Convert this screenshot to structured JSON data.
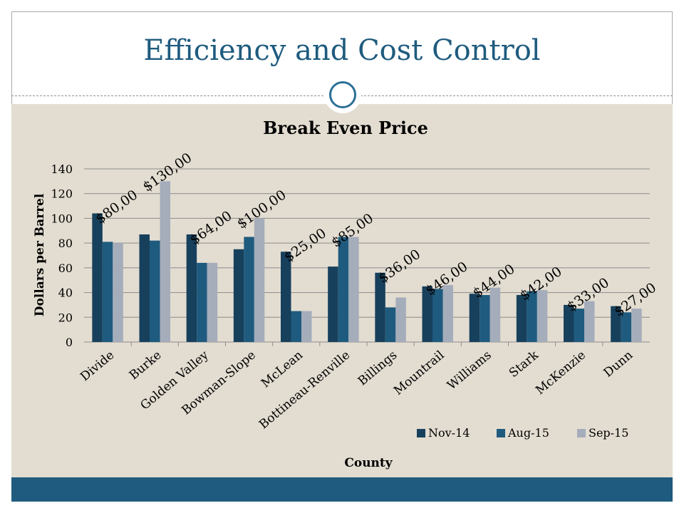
{
  "slide": {
    "title": "Efficiency and Cost Control"
  },
  "colors": {
    "title": "#1f5b7e",
    "panel": "#e3ddd1",
    "footer": "#1f5b7e",
    "grid": "#8c8c8c"
  },
  "chart_data": {
    "type": "bar",
    "title": "Break Even Price",
    "xlabel": "County",
    "ylabel": "Dollars per Barrel",
    "ylim": [
      0,
      140
    ],
    "yticks": [
      0,
      20,
      40,
      60,
      80,
      100,
      120,
      140
    ],
    "grid": true,
    "legend_position": "bottom-right",
    "categories": [
      "Divide",
      "Burke",
      "Golden Valley",
      "Bowman-Slope",
      "McLean",
      "Bottineau-Renville",
      "Billings",
      "Mountrail",
      "Williams",
      "Stark",
      "McKenzie",
      "Dunn"
    ],
    "series": [
      {
        "name": "Nov-14",
        "color": "#17405c",
        "values": [
          104,
          87,
          87,
          75,
          73,
          61,
          56,
          45,
          39,
          38,
          30,
          29
        ]
      },
      {
        "name": "Aug-15",
        "color": "#1f5b7e",
        "values": [
          81,
          82,
          64,
          85,
          25,
          85,
          28,
          43,
          38,
          41,
          27,
          24
        ]
      },
      {
        "name": "Sep-15",
        "color": "#a5adbb",
        "values": [
          80,
          130,
          64,
          100,
          25,
          85,
          36,
          46,
          44,
          42,
          33,
          27
        ]
      }
    ],
    "data_labels": [
      "$80,00",
      "$130,00",
      "$64,00",
      "$100,00",
      "$25,00",
      "$85,00",
      "$36,00",
      "$46,00",
      "$44,00",
      "$42,00",
      "$33,00",
      "$27,00"
    ]
  }
}
